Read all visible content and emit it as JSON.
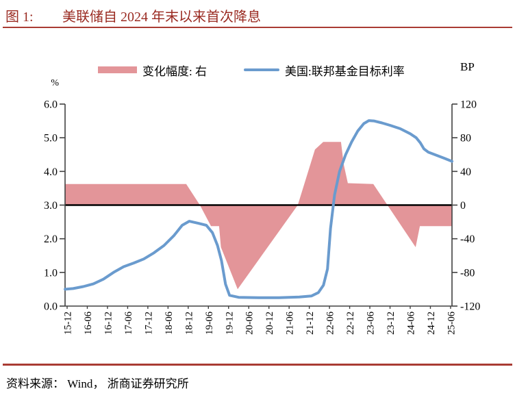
{
  "header": {
    "caption_prefix": "图 1:",
    "caption_title": "美联储自 2024 年末以来首次降息"
  },
  "legend": {
    "items": [
      {
        "label": "变化幅度: 右",
        "swatch": "bar",
        "color": "#e39599"
      },
      {
        "label": "美国:联邦基金目标利率",
        "swatch": "line",
        "color": "#6a9bce"
      }
    ]
  },
  "colors": {
    "caption_red": "#9a2b22",
    "rule_red": "#a93b33",
    "area_pink": "#e39599",
    "line_blue": "#6a9bce",
    "axis_gray": "#404040",
    "zero_line_black": "#000000"
  },
  "footer": {
    "source": "资料来源： Wind， 浙商证券研究所"
  },
  "chart_data": {
    "type": "combo",
    "title": "美联储自 2024 年末以来首次降息",
    "x_categories": [
      "15-12",
      "16-06",
      "16-12",
      "17-06",
      "17-12",
      "18-06",
      "18-12",
      "19-06",
      "19-12",
      "20-06",
      "20-12",
      "21-06",
      "21-12",
      "22-06",
      "22-12",
      "23-06",
      "23-12",
      "24-06",
      "24-12",
      "25-06"
    ],
    "axes": {
      "left": {
        "unit": "%",
        "min": 0,
        "max": 6,
        "ticks": [
          "6.0",
          "5.0",
          "4.0",
          "3.0",
          "2.0",
          "1.0",
          "0.0"
        ]
      },
      "right": {
        "unit": "BP",
        "min": -120,
        "max": 120,
        "ticks": [
          "120",
          "80",
          "40",
          "0",
          "-40",
          "-80",
          "-120"
        ]
      },
      "zero_baseline_right": 0
    },
    "grid": false,
    "legend_position": "top",
    "series": [
      {
        "name": "变化幅度: 右",
        "type": "area",
        "axis": "right",
        "unit": "BP",
        "color": "#e39599",
        "points": [
          [
            -0.1,
            25
          ],
          [
            5.9,
            25
          ],
          [
            6.58,
            0
          ],
          [
            7.13,
            -25
          ],
          [
            7.53,
            -25
          ],
          [
            7.62,
            -50
          ],
          [
            8.45,
            -100
          ],
          [
            11.43,
            0
          ],
          [
            12.28,
            66
          ],
          [
            12.69,
            75
          ],
          [
            13.57,
            75
          ],
          [
            13.71,
            48
          ],
          [
            13.91,
            26
          ],
          [
            15.17,
            25
          ],
          [
            17.27,
            -50
          ],
          [
            17.48,
            -25
          ],
          [
            19.07,
            -25
          ]
        ]
      },
      {
        "name": "美国:联邦基金目标利率",
        "type": "line",
        "axis": "left",
        "unit": "%",
        "color": "#6a9bce",
        "points": [
          [
            -0.1,
            0.5
          ],
          [
            0.3,
            0.52
          ],
          [
            0.8,
            0.58
          ],
          [
            1.3,
            0.66
          ],
          [
            1.8,
            0.8
          ],
          [
            2.3,
            1.0
          ],
          [
            2.8,
            1.17
          ],
          [
            3.3,
            1.28
          ],
          [
            3.8,
            1.4
          ],
          [
            4.3,
            1.58
          ],
          [
            4.8,
            1.8
          ],
          [
            5.3,
            2.1
          ],
          [
            5.7,
            2.4
          ],
          [
            6.05,
            2.52
          ],
          [
            6.5,
            2.46
          ],
          [
            6.9,
            2.4
          ],
          [
            7.2,
            2.18
          ],
          [
            7.45,
            1.8
          ],
          [
            7.65,
            1.35
          ],
          [
            7.85,
            0.65
          ],
          [
            8.05,
            0.32
          ],
          [
            8.5,
            0.26
          ],
          [
            9.5,
            0.25
          ],
          [
            10.5,
            0.25
          ],
          [
            11.5,
            0.27
          ],
          [
            12.1,
            0.3
          ],
          [
            12.45,
            0.4
          ],
          [
            12.7,
            0.62
          ],
          [
            12.9,
            1.1
          ],
          [
            13.05,
            2.3
          ],
          [
            13.25,
            3.3
          ],
          [
            13.5,
            4.0
          ],
          [
            13.8,
            4.5
          ],
          [
            14.1,
            4.88
          ],
          [
            14.4,
            5.2
          ],
          [
            14.7,
            5.42
          ],
          [
            14.95,
            5.51
          ],
          [
            15.2,
            5.5
          ],
          [
            15.6,
            5.44
          ],
          [
            16.0,
            5.37
          ],
          [
            16.5,
            5.27
          ],
          [
            17.0,
            5.12
          ],
          [
            17.3,
            5.0
          ],
          [
            17.5,
            4.85
          ],
          [
            17.68,
            4.67
          ],
          [
            17.9,
            4.57
          ],
          [
            18.3,
            4.48
          ],
          [
            18.7,
            4.39
          ],
          [
            19.07,
            4.3
          ]
        ]
      }
    ]
  }
}
